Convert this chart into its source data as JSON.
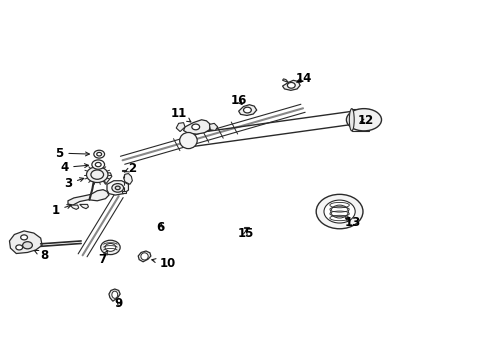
{
  "background_color": "#ffffff",
  "fig_width": 4.89,
  "fig_height": 3.6,
  "dpi": 100,
  "line_color": "#2a2a2a",
  "arrow_color": "#1a1a1a",
  "text_color": "#000000",
  "part_fontsize": 8.5,
  "label_positions": {
    "1": [
      0.118,
      0.415,
      0.155,
      0.435
    ],
    "2": [
      0.272,
      0.53,
      0.245,
      0.52
    ],
    "3": [
      0.14,
      0.49,
      0.185,
      0.483
    ],
    "4": [
      0.132,
      0.535,
      0.18,
      0.534
    ],
    "5": [
      0.122,
      0.578,
      0.18,
      0.577
    ],
    "6": [
      0.33,
      0.37,
      0.33,
      0.388
    ],
    "7": [
      0.218,
      0.278,
      0.228,
      0.31
    ],
    "8": [
      0.098,
      0.285,
      0.102,
      0.308
    ],
    "9": [
      0.248,
      0.152,
      0.232,
      0.172
    ],
    "10": [
      0.34,
      0.268,
      0.31,
      0.275
    ],
    "11": [
      0.382,
      0.682,
      0.4,
      0.66
    ],
    "12": [
      0.742,
      0.662,
      0.718,
      0.65
    ],
    "13": [
      0.718,
      0.385,
      0.698,
      0.402
    ],
    "14": [
      0.618,
      0.782,
      0.595,
      0.768
    ],
    "15": [
      0.502,
      0.352,
      0.508,
      0.368
    ],
    "16": [
      0.488,
      0.72,
      0.498,
      0.7
    ]
  }
}
